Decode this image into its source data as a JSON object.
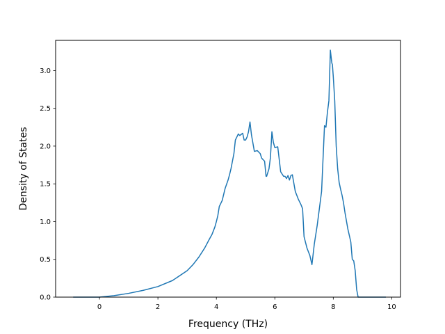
{
  "chart_data": {
    "type": "line",
    "title": "",
    "xlabel": "Frequency (THz)",
    "ylabel": "Density of States",
    "xlim": [
      -1.5,
      10.3
    ],
    "ylim": [
      0.0,
      3.4
    ],
    "xticks": [
      0,
      2,
      4,
      6,
      8,
      10
    ],
    "xtick_labels": [
      "0",
      "2",
      "4",
      "6",
      "8",
      "10"
    ],
    "yticks": [
      0.0,
      0.5,
      1.0,
      1.5,
      2.0,
      2.5,
      3.0
    ],
    "ytick_labels": [
      "0.0",
      "0.5",
      "1.0",
      "1.5",
      "2.0",
      "2.5",
      "3.0"
    ],
    "grid": false,
    "line_color": "#1f77b4",
    "series": [
      {
        "x": [
          -0.9,
          -0.5,
          0.0,
          0.5,
          1.0,
          1.5,
          2.0,
          2.5,
          3.0,
          3.2,
          3.4,
          3.6,
          3.75,
          3.85,
          3.95,
          4.0,
          4.05,
          4.1,
          4.2,
          4.3,
          4.4,
          4.45,
          4.5,
          4.6,
          4.65,
          4.7,
          4.75,
          4.8,
          4.9,
          4.95,
          5.0,
          5.05,
          5.1,
          5.15,
          5.2,
          5.3,
          5.4,
          5.5,
          5.55,
          5.6,
          5.65,
          5.7,
          5.72,
          5.8,
          5.85,
          5.9,
          5.95,
          6.0,
          6.1,
          6.2,
          6.3,
          6.35,
          6.4,
          6.45,
          6.5,
          6.55,
          6.6,
          6.7,
          6.8,
          6.9,
          6.95,
          7.0,
          7.1,
          7.2,
          7.27,
          7.35,
          7.45,
          7.5,
          7.6,
          7.7,
          7.75,
          7.8,
          7.85,
          7.9,
          7.95,
          7.97,
          8.0,
          8.05,
          8.1,
          8.15,
          8.2,
          8.25,
          8.3,
          8.35,
          8.4,
          8.5,
          8.6,
          8.65,
          8.7,
          8.75,
          8.8,
          8.85,
          8.9,
          8.95,
          9.0,
          9.5,
          9.8
        ],
        "y": [
          0.0,
          0.0,
          0.0,
          0.02,
          0.05,
          0.09,
          0.14,
          0.22,
          0.35,
          0.43,
          0.53,
          0.65,
          0.76,
          0.83,
          0.93,
          1.0,
          1.08,
          1.2,
          1.28,
          1.44,
          1.55,
          1.62,
          1.7,
          1.9,
          2.08,
          2.12,
          2.16,
          2.14,
          2.17,
          2.08,
          2.08,
          2.12,
          2.19,
          2.32,
          2.15,
          1.93,
          1.94,
          1.9,
          1.84,
          1.82,
          1.8,
          1.6,
          1.6,
          1.7,
          1.85,
          2.19,
          2.05,
          1.98,
          1.99,
          1.66,
          1.6,
          1.6,
          1.57,
          1.61,
          1.55,
          1.61,
          1.62,
          1.4,
          1.3,
          1.22,
          1.17,
          0.8,
          0.65,
          0.55,
          0.43,
          0.7,
          0.95,
          1.1,
          1.4,
          2.27,
          2.25,
          2.45,
          2.6,
          3.27,
          3.1,
          3.08,
          2.92,
          2.6,
          2.0,
          1.7,
          1.52,
          1.43,
          1.35,
          1.25,
          1.12,
          0.9,
          0.73,
          0.5,
          0.48,
          0.35,
          0.1,
          0.0,
          0.0,
          0.0,
          0.0,
          0.0,
          0.0
        ]
      }
    ]
  }
}
